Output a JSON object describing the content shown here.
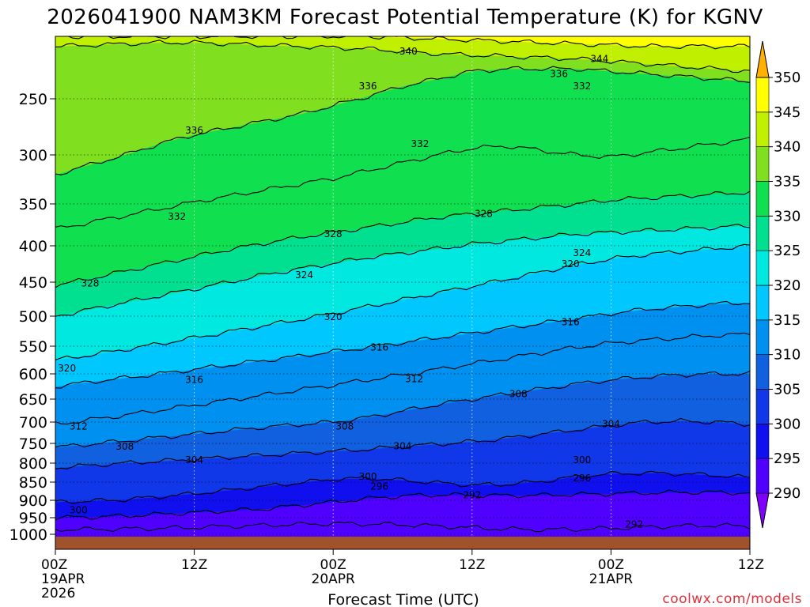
{
  "chart_data": {
    "type": "heatmap",
    "title": "2026041900 NAM3KM Forecast Potential Temperature (K) for KGNV",
    "xlabel": "Forecast Time (UTC)",
    "ylabel": "",
    "credit": "coolwx.com/models",
    "y_ticks": [
      "250",
      "300",
      "350",
      "400",
      "450",
      "500",
      "550",
      "600",
      "650",
      "700",
      "750",
      "800",
      "850",
      "900",
      "950",
      "1000"
    ],
    "y_tick_values": [
      250,
      300,
      350,
      400,
      450,
      500,
      550,
      600,
      650,
      700,
      750,
      800,
      850,
      900,
      950,
      1000
    ],
    "ylim": [
      200,
      1010
    ],
    "x_ticks": [
      {
        "hour": 0,
        "line1": "00Z",
        "line2": "19APR",
        "line3": "2026"
      },
      {
        "hour": 12,
        "line1": "12Z",
        "line2": "",
        "line3": ""
      },
      {
        "hour": 24,
        "line1": "00Z",
        "line2": "20APR",
        "line3": ""
      },
      {
        "hour": 36,
        "line1": "12Z",
        "line2": "",
        "line3": ""
      },
      {
        "hour": 48,
        "line1": "00Z",
        "line2": "21APR",
        "line3": ""
      },
      {
        "hour": 60,
        "line1": "12Z",
        "line2": "",
        "line3": ""
      }
    ],
    "xlim": [
      0,
      60
    ],
    "colorbar": {
      "levels": [
        "290",
        "295",
        "300",
        "305",
        "310",
        "315",
        "320",
        "325",
        "330",
        "335",
        "340",
        "345",
        "350"
      ],
      "level_values": [
        290,
        295,
        300,
        305,
        310,
        315,
        320,
        325,
        330,
        335,
        340,
        345,
        350
      ],
      "colors": [
        "#8000ff",
        "#5000ff",
        "#1010ee",
        "#1038e8",
        "#1060e0",
        "#0090f0",
        "#00c8ff",
        "#00e8e0",
        "#00e090",
        "#10e050",
        "#80e020",
        "#c0f000",
        "#ffff00",
        "#ffb000"
      ]
    },
    "isentropes": [
      {
        "theta": 292,
        "label": "292",
        "pressure": [
          985,
          985,
          984,
          982,
          979,
          976,
          973,
          970,
          968,
          969,
          971,
          975,
          980,
          984,
          986,
          985,
          982,
          978,
          975,
          973,
          976
        ]
      },
      {
        "theta": 296,
        "label": "296",
        "pressure": [
          950,
          948,
          945,
          940,
          935,
          930,
          925,
          915,
          905,
          895,
          888,
          885,
          886,
          887,
          886,
          884,
          882,
          880,
          878,
          878,
          880
        ]
      },
      {
        "theta": 300,
        "label": "300",
        "pressure": [
          905,
          902,
          898,
          890,
          882,
          872,
          862,
          852,
          842,
          840,
          845,
          852,
          858,
          856,
          848,
          836,
          828,
          826,
          828,
          832,
          838
        ]
      },
      {
        "theta": 304,
        "label": "304",
        "pressure": [
          812,
          806,
          800,
          795,
          790,
          785,
          780,
          775,
          770,
          765,
          758,
          752,
          746,
          738,
          728,
          718,
          708,
          700,
          698,
          700,
          705
        ]
      },
      {
        "theta": 308,
        "label": "308",
        "pressure": [
          760,
          752,
          744,
          736,
          728,
          720,
          712,
          706,
          700,
          690,
          676,
          662,
          650,
          640,
          630,
          620,
          612,
          606,
          602,
          600,
          600
        ]
      },
      {
        "theta": 312,
        "label": "312",
        "pressure": [
          705,
          695,
          685,
          674,
          663,
          652,
          642,
          632,
          622,
          612,
          602,
          592,
          582,
          572,
          562,
          552,
          545,
          540,
          536,
          532,
          530
        ]
      },
      {
        "theta": 316,
        "label": "316",
        "pressure": [
          625,
          616,
          608,
          600,
          592,
          584,
          576,
          568,
          560,
          552,
          544,
          536,
          528,
          520,
          512,
          504,
          496,
          490,
          486,
          482,
          480
        ]
      },
      {
        "theta": 320,
        "label": "320",
        "pressure": [
          575,
          566,
          556,
          546,
          536,
          526,
          516,
          506,
          496,
          486,
          476,
          466,
          456,
          446,
          436,
          426,
          418,
          412,
          408,
          404,
          400
        ]
      },
      {
        "theta": 324,
        "label": "324",
        "pressure": [
          500,
          490,
          480,
          470,
          460,
          450,
          440,
          432,
          424,
          416,
          410,
          404,
          398,
          394,
          390,
          386,
          384,
          382,
          380,
          378,
          376
        ]
      },
      {
        "theta": 328,
        "label": "328",
        "pressure": [
          455,
          445,
          435,
          425,
          415,
          405,
          397,
          390,
          384,
          378,
          372,
          366,
          362,
          358,
          354,
          350,
          346,
          344,
          342,
          340,
          338
        ]
      },
      {
        "theta": 332,
        "label": "332",
        "pressure": [
          380,
          372,
          364,
          356,
          348,
          342,
          336,
          330,
          324,
          316,
          308,
          300,
          294,
          292,
          296,
          300,
          302,
          298,
          294,
          290,
          286
        ]
      },
      {
        "theta": 336,
        "label": "336",
        "pressure": [
          320,
          310,
          300,
          290,
          282,
          276,
          270,
          264,
          256,
          248,
          240,
          234,
          228,
          226,
          226,
          226,
          228,
          230,
          232,
          234,
          236
        ]
      },
      {
        "theta": 340,
        "label": "340",
        "pressure": [
          208,
          207,
          206,
          205,
          205,
          206,
          207,
          208,
          209,
          210,
          212,
          214,
          215,
          216,
          217,
          218,
          220,
          222,
          224,
          226,
          228
        ]
      },
      {
        "theta": 344,
        "label": "344",
        "pressure": [
          200,
          200,
          200,
          200,
          200,
          200,
          200,
          200,
          200,
          200,
          201,
          202,
          203,
          204,
          205,
          206,
          207,
          208,
          208,
          208,
          208
        ]
      }
    ],
    "isentrope_hours": [
      0,
      3,
      6,
      9,
      12,
      15,
      18,
      21,
      24,
      27,
      30,
      33,
      36,
      39,
      42,
      45,
      48,
      51,
      54,
      57,
      60
    ],
    "contour_labels": [
      {
        "text": "340",
        "hour": 30.5,
        "pressure": 212
      },
      {
        "text": "344",
        "hour": 47.0,
        "pressure": 218
      },
      {
        "text": "336",
        "hour": 43.5,
        "pressure": 230
      },
      {
        "text": "332",
        "hour": 45.5,
        "pressure": 240
      },
      {
        "text": "336",
        "hour": 27.0,
        "pressure": 240
      },
      {
        "text": "336",
        "hour": 12.0,
        "pressure": 278
      },
      {
        "text": "332",
        "hour": 31.5,
        "pressure": 290
      },
      {
        "text": "332",
        "hour": 10.5,
        "pressure": 365
      },
      {
        "text": "328",
        "hour": 37.0,
        "pressure": 362
      },
      {
        "text": "328",
        "hour": 24.0,
        "pressure": 386
      },
      {
        "text": "324",
        "hour": 45.5,
        "pressure": 410
      },
      {
        "text": "320",
        "hour": 44.5,
        "pressure": 425
      },
      {
        "text": "324",
        "hour": 21.5,
        "pressure": 440
      },
      {
        "text": "328",
        "hour": 3.0,
        "pressure": 452
      },
      {
        "text": "320",
        "hour": 24.0,
        "pressure": 501
      },
      {
        "text": "316",
        "hour": 44.5,
        "pressure": 510
      },
      {
        "text": "316",
        "hour": 28.0,
        "pressure": 552
      },
      {
        "text": "320",
        "hour": 1.0,
        "pressure": 590
      },
      {
        "text": "312",
        "hour": 31.0,
        "pressure": 610
      },
      {
        "text": "316",
        "hour": 12.0,
        "pressure": 612
      },
      {
        "text": "308",
        "hour": 40.0,
        "pressure": 640
      },
      {
        "text": "312",
        "hour": 2.0,
        "pressure": 710
      },
      {
        "text": "308",
        "hour": 25.0,
        "pressure": 710
      },
      {
        "text": "304",
        "hour": 48.0,
        "pressure": 705
      },
      {
        "text": "308",
        "hour": 6.0,
        "pressure": 758
      },
      {
        "text": "304",
        "hour": 30.0,
        "pressure": 757
      },
      {
        "text": "304",
        "hour": 12.0,
        "pressure": 792
      },
      {
        "text": "300",
        "hour": 45.5,
        "pressure": 792
      },
      {
        "text": "300",
        "hour": 27.0,
        "pressure": 835
      },
      {
        "text": "296",
        "hour": 45.5,
        "pressure": 840
      },
      {
        "text": "296",
        "hour": 28.0,
        "pressure": 862
      },
      {
        "text": "292",
        "hour": 36.0,
        "pressure": 886
      },
      {
        "text": "300",
        "hour": 2.0,
        "pressure": 928
      },
      {
        "text": "292",
        "hour": 50.0,
        "pressure": 970
      }
    ]
  }
}
